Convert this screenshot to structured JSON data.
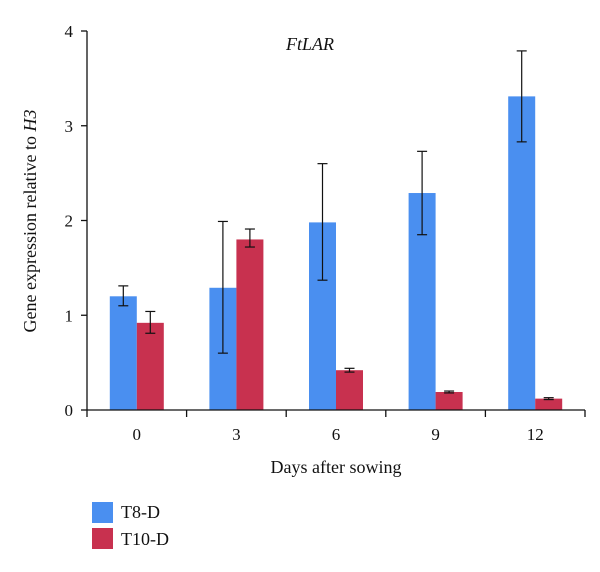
{
  "chart_data": {
    "type": "bar",
    "title": "FtLAR",
    "xlabel": "Days after sowing",
    "ylabel_prefix": "Gene expression relative to ",
    "ylabel_gene": "H3",
    "categories": [
      "0",
      "3",
      "6",
      "9",
      "12"
    ],
    "ylim": [
      0,
      4
    ],
    "yticks": [
      "0",
      "1",
      "2",
      "3",
      "4"
    ],
    "grid": false,
    "legend_position": "bottom-left",
    "series": [
      {
        "name": "T8-D",
        "color": "#4a8ff0",
        "values": [
          1.2,
          1.29,
          1.98,
          2.29,
          3.31
        ],
        "err_low": [
          1.1,
          0.6,
          1.37,
          1.85,
          2.83
        ],
        "err_high": [
          1.31,
          1.99,
          2.6,
          2.73,
          3.79
        ]
      },
      {
        "name": "T10-D",
        "color": "#c8314f",
        "values": [
          0.92,
          1.8,
          0.42,
          0.19,
          0.12
        ],
        "err_low": [
          0.81,
          1.72,
          0.4,
          0.18,
          0.11
        ],
        "err_high": [
          1.04,
          1.91,
          0.44,
          0.2,
          0.13
        ]
      }
    ]
  }
}
